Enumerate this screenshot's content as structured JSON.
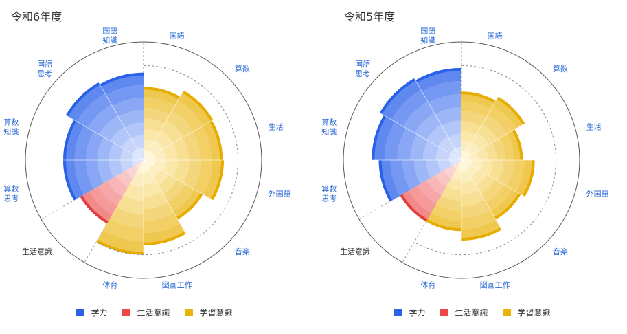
{
  "colors": {
    "gakuryoku": "#2962e8",
    "seikatsu": "#ec4848",
    "gakushu": "#eab308",
    "label_blue": "#2b6ad6",
    "label_dark": "#333333"
  },
  "chart_data": [
    {
      "type": "polar-bar",
      "title": "令和6年度",
      "rmax": 100,
      "reference_value": 80,
      "legend": [
        "学力",
        "生活意識",
        "学習意識"
      ],
      "legend_position": "bottom",
      "categories": [
        {
          "lines": [
            "国語"
          ],
          "group": "学習意識",
          "value": 62
        },
        {
          "lines": [
            "算数"
          ],
          "group": "学習意識",
          "value": 68
        },
        {
          "lines": [
            "生活"
          ],
          "group": "学習意識",
          "value": 67
        },
        {
          "lines": [
            "外国語"
          ],
          "group": "学習意識",
          "value": 68
        },
        {
          "lines": [
            "音楽"
          ],
          "group": "学習意識",
          "value": 58
        },
        {
          "lines": [
            "図画工作"
          ],
          "group": "学習意識",
          "value": 72
        },
        {
          "lines": [
            "体育"
          ],
          "group": "学習意識",
          "value": 80
        },
        {
          "lines": [
            "生活意識"
          ],
          "group": "生活意識",
          "value": 62
        },
        {
          "lines": [
            "算数",
            "思考"
          ],
          "group": "学力",
          "value": 68
        },
        {
          "lines": [
            "算数",
            "知識"
          ],
          "group": "学力",
          "value": 68
        },
        {
          "lines": [
            "国語",
            "思考"
          ],
          "group": "学力",
          "value": 76
        },
        {
          "lines": [
            "国語",
            "知識"
          ],
          "group": "学力",
          "value": 74
        }
      ]
    },
    {
      "type": "polar-bar",
      "title": "令和5年度",
      "rmax": 100,
      "reference_value": 80,
      "legend": [
        "学力",
        "生活意識",
        "学習意識"
      ],
      "legend_position": "bottom",
      "categories": [
        {
          "lines": [
            "国語"
          ],
          "group": "学習意識",
          "value": 58
        },
        {
          "lines": [
            "算数"
          ],
          "group": "学習意識",
          "value": 62
        },
        {
          "lines": [
            "生活"
          ],
          "group": "学習意識",
          "value": 52
        },
        {
          "lines": [
            "外国語"
          ],
          "group": "学習意識",
          "value": 62
        },
        {
          "lines": [
            "音楽"
          ],
          "group": "学習意識",
          "value": 58
        },
        {
          "lines": [
            "図画工作"
          ],
          "group": "学習意識",
          "value": 68
        },
        {
          "lines": [
            "体育"
          ],
          "group": "学習意識",
          "value": 60
        },
        {
          "lines": [
            "生活意識"
          ],
          "group": "生活意識",
          "value": 60
        },
        {
          "lines": [
            "算数",
            "思考"
          ],
          "group": "学力",
          "value": 70
        },
        {
          "lines": [
            "算数",
            "知識"
          ],
          "group": "学力",
          "value": 76
        },
        {
          "lines": [
            "国語",
            "思考"
          ],
          "group": "学力",
          "value": 80
        },
        {
          "lines": [
            "国語",
            "知識"
          ],
          "group": "学力",
          "value": 78
        }
      ]
    }
  ]
}
